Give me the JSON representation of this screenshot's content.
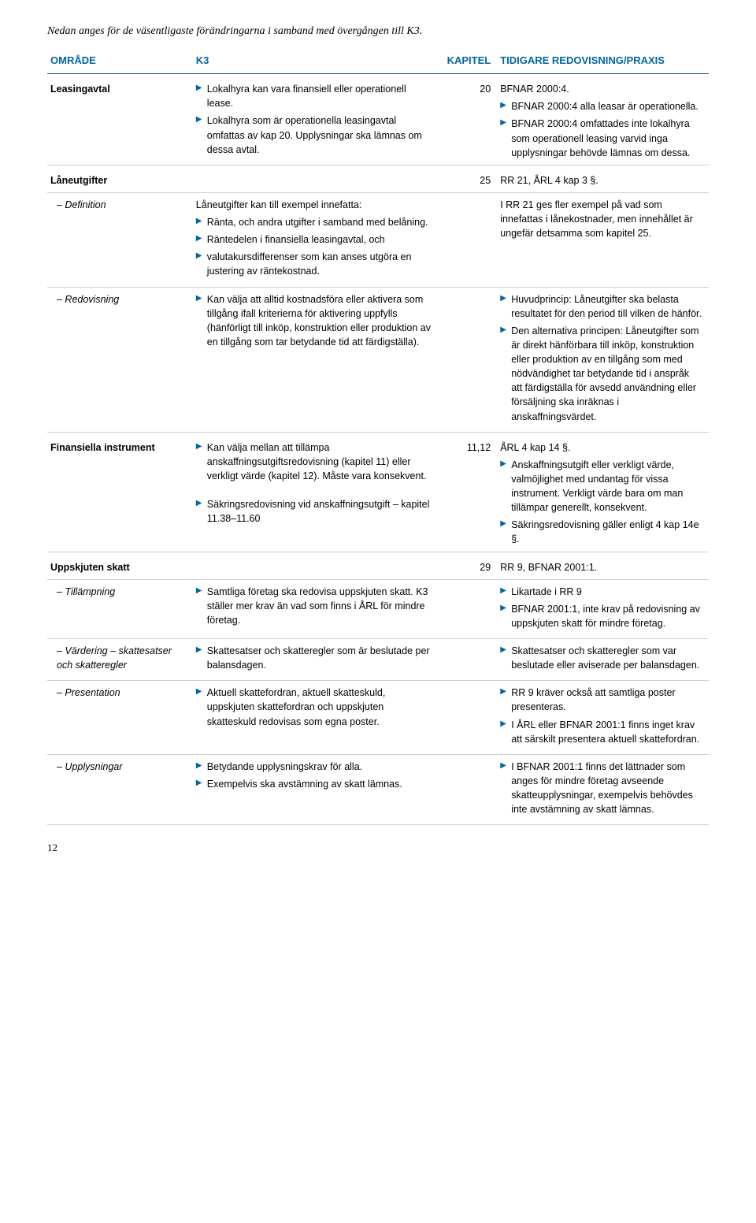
{
  "intro": "Nedan anges för de väsentligaste förändringarna i samband med övergången till K3.",
  "headers": {
    "c1": "OMRÅDE",
    "c2": "K3",
    "c3": "KAPITEL",
    "c4": "TIDIGARE REDOVISNING/PRAXIS"
  },
  "leasing": {
    "label": "Leasingavtal",
    "k3_b1": "Lokalhyra kan vara finansiell eller operationell lease.",
    "k3_b2": "Lokalhyra som är operationella leasingavtal omfattas av kap 20. Upplysningar ska lämnas om dessa avtal.",
    "kapitel": "20",
    "p1": "BFNAR 2000:4.",
    "p_b1": "BFNAR 2000:4 alla leasar är operationella.",
    "p_b2": "BFNAR 2000:4 omfattades inte lokalhyra som operationell leasing varvid inga upplysningar behövde lämnas om dessa."
  },
  "loan": {
    "label": "Låneutgifter",
    "kapitel": "25",
    "praxis": "RR 21, ÅRL 4 kap 3 §.",
    "def_label": "– Definition",
    "def_t1": "Låneutgifter kan till exempel innefatta:",
    "def_b1": "Ränta, och andra utgifter i samband med belåning.",
    "def_b2": "Räntedelen i finansiella leasingavtal, och",
    "def_b3": "valutakursdifferenser som kan anses utgöra en justering av räntekostnad.",
    "def_p1": "I RR 21 ges fler exempel på vad som innefattas i lånekostnader, men innehållet är ungefär detsamma som kapitel 25.",
    "red_label": "– Redovisning",
    "red_b1": "Kan välja att alltid kostnadsföra eller aktivera som tillgång ifall kriterierna för aktivering uppfylls (hänförligt till inköp, konstruktion eller produktion av en tillgång som tar betydande tid att färdigställa).",
    "red_pb1": "Huvudprincip: Låneutgifter ska belasta resultatet för den period till vilken de hänför.",
    "red_pb2": "Den alternativa principen: Låneutgifter som är direkt hänförbara till inköp, konstruktion eller produktion av en tillgång som med nödvändighet tar betydande tid i anspråk att färdigställa för avsedd användning eller försäljning ska inräknas i anskaffningsvärdet."
  },
  "fin": {
    "label": "Finansiella instrument",
    "k3_b1": "Kan välja mellan att tillämpa anskaffningsutgiftsredovisning (kapitel 11) eller verkligt värde (kapitel 12). Måste vara konsekvent.",
    "k3_b2": "Säkringsredovisning vid anskaffningsutgift – kapitel 11.38–11.60",
    "kapitel": "11,12",
    "p1": "ÅRL 4 kap 14 §.",
    "p_b1": "Anskaffningsutgift eller verkligt värde, valmöjlighet med undantag för vissa instrument. Verkligt värde bara om man tillämpar generellt, konsekvent.",
    "p_b2": "Säkringsredovisning gäller enligt 4 kap 14e §."
  },
  "tax": {
    "label": "Uppskjuten skatt",
    "kapitel": "29",
    "praxis": "RR 9, BFNAR 2001:1.",
    "til_label": "– Tillämpning",
    "til_b1": "Samtliga företag ska redovisa uppskjuten skatt. K3 ställer mer krav än vad som finns i ÅRL för mindre företag.",
    "til_pb1": "Likartade i RR 9",
    "til_pb2": "BFNAR 2001:1, inte krav på redovisning av uppskjuten skatt för mindre företag.",
    "val_label": "– Värdering – skattesatser och skatteregler",
    "val_b1": "Skattesatser och skatteregler som är beslutade per balansdagen.",
    "val_pb1": "Skattesatser och skatteregler som var beslutade eller aviserade per balansdagen.",
    "pre_label": "– Presentation",
    "pre_b1": "Aktuell skattefordran, aktuell skatteskuld, uppskjuten skattefordran och uppskjuten skatteskuld redovisas som egna poster.",
    "pre_pb1": "RR 9 kräver också att samtliga poster presenteras.",
    "pre_pb2": "I ÅRL eller BFNAR 2001:1 finns inget krav att särskilt presentera aktuell skattefordran.",
    "upp_label": "– Upplysningar",
    "upp_b1": "Betydande upplysningskrav för alla.",
    "upp_b2": "Exempelvis ska avstämning av skatt lämnas.",
    "upp_pb1": "I BFNAR 2001:1 finns det lättnader som anges för mindre företag avseende skatteupplysningar, exempelvis behövdes inte avstämning av skatt lämnas."
  },
  "page_num": "12",
  "colors": {
    "accent": "#0066a1",
    "rule": "#cfcfcf",
    "text": "#000000",
    "bg": "#ffffff"
  }
}
